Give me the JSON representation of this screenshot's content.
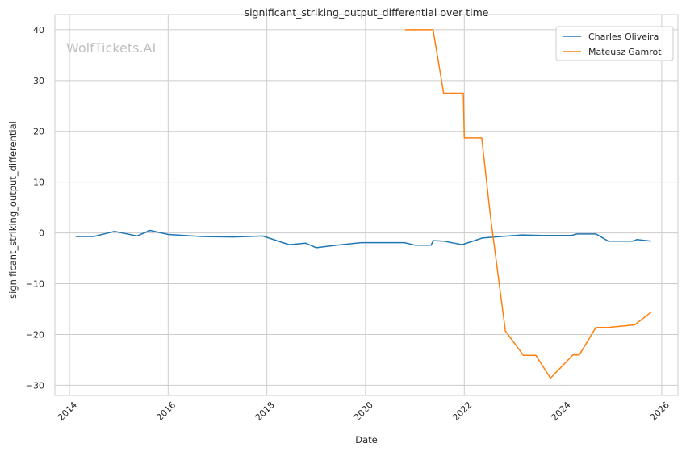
{
  "chart_data": {
    "type": "line",
    "title": "significant_striking_output_differential over time",
    "xlabel": "Date",
    "ylabel": "significant_striking_output_differential",
    "watermark": "WolfTickets.AI",
    "x_ticks": [
      "2014",
      "2016",
      "2018",
      "2020",
      "2022",
      "2024",
      "2026"
    ],
    "y_ticks": [
      40,
      30,
      20,
      10,
      0,
      -10,
      -20,
      -30
    ],
    "y_tick_labels": [
      "40",
      "30",
      "20",
      "10",
      "0",
      "−10",
      "−20",
      "−30"
    ],
    "xlim": [
      "2013-09-15",
      "2026-05-01"
    ],
    "ylim": [
      -32,
      43
    ],
    "grid": true,
    "legend_position": "top-right",
    "series": [
      {
        "name": "Charles Oliveira",
        "color": "#1f77b4",
        "points": [
          [
            "2014-02-15",
            -0.7
          ],
          [
            "2014-07-01",
            -0.7
          ],
          [
            "2014-12-01",
            0.3
          ],
          [
            "2015-05-15",
            -0.6
          ],
          [
            "2015-08-20",
            0.5
          ],
          [
            "2016-01-01",
            -0.3
          ],
          [
            "2016-09-01",
            -0.7
          ],
          [
            "2017-05-01",
            -0.8
          ],
          [
            "2017-12-01",
            -0.6
          ],
          [
            "2018-06-15",
            -2.3
          ],
          [
            "2018-10-15",
            -2.0
          ],
          [
            "2019-01-01",
            -2.9
          ],
          [
            "2019-06-01",
            -2.4
          ],
          [
            "2019-12-01",
            -1.9
          ],
          [
            "2020-05-01",
            -1.9
          ],
          [
            "2020-10-15",
            -1.9
          ],
          [
            "2021-01-01",
            -2.4
          ],
          [
            "2021-05-01",
            -2.4
          ],
          [
            "2021-05-15",
            -1.5
          ],
          [
            "2021-08-01",
            -1.6
          ],
          [
            "2021-12-15",
            -2.3
          ],
          [
            "2022-05-15",
            -1.0
          ],
          [
            "2022-10-01",
            -0.7
          ],
          [
            "2023-03-01",
            -0.4
          ],
          [
            "2023-08-01",
            -0.5
          ],
          [
            "2024-03-01",
            -0.5
          ],
          [
            "2024-04-15",
            -0.2
          ],
          [
            "2024-09-01",
            -0.2
          ],
          [
            "2024-12-01",
            -1.6
          ],
          [
            "2025-06-01",
            -1.6
          ],
          [
            "2025-07-01",
            -1.3
          ],
          [
            "2025-10-15",
            -1.6
          ]
        ]
      },
      {
        "name": "Mateusz Gamrot",
        "color": "#ff7f0e",
        "points": [
          [
            "2020-10-20",
            40.0
          ],
          [
            "2021-05-15",
            40.0
          ],
          [
            "2021-08-01",
            27.5
          ],
          [
            "2021-12-25",
            27.5
          ],
          [
            "2022-01-01",
            18.7
          ],
          [
            "2022-05-10",
            18.7
          ],
          [
            "2022-07-15",
            3.0
          ],
          [
            "2022-11-01",
            -19.3
          ],
          [
            "2023-03-15",
            -24.1
          ],
          [
            "2023-06-15",
            -24.1
          ],
          [
            "2023-10-01",
            -28.6
          ],
          [
            "2024-03-15",
            -24.0
          ],
          [
            "2024-05-01",
            -24.0
          ],
          [
            "2024-09-01",
            -18.6
          ],
          [
            "2024-12-01",
            -18.6
          ],
          [
            "2025-06-15",
            -18.1
          ],
          [
            "2025-10-15",
            -15.6
          ]
        ]
      }
    ]
  }
}
